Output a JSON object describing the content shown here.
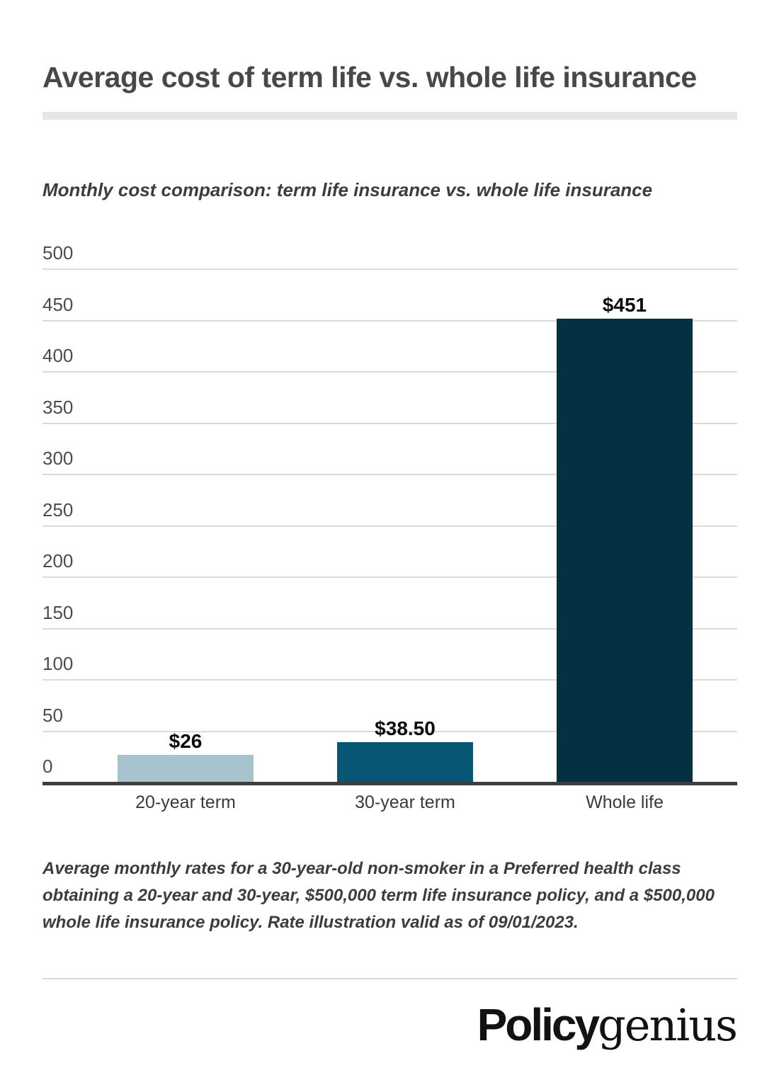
{
  "page": {
    "title": "Average cost of term life vs. whole life insurance",
    "subtitle": "Monthly cost comparison: term life insurance vs. whole life insurance",
    "footnote": "Average monthly rates for a 30-year-old non-smoker in a Preferred health class obtaining a 20-year and 30-year, $500,000 term life insurance policy, and a $500,000 whole life insurance policy. Rate illustration valid as of 09/01/2023.",
    "logo": {
      "bold_part": "Policy",
      "serif_part": "genius"
    }
  },
  "colors": {
    "background": "#ffffff",
    "title_text": "#484848",
    "subtitle_text": "#3d3d3d",
    "tick_text": "#4c4c4c",
    "category_text": "#3a3a3a",
    "value_text": "#0c0c0c",
    "gridline": "#dadada",
    "axis_line": "#3f3f3f",
    "divider": "#e6e6e6",
    "footer_divider": "#d9d9d9",
    "logo_text": "#121212"
  },
  "chart_data": {
    "type": "bar",
    "title": "Monthly cost comparison: term life insurance vs. whole life insurance",
    "categories": [
      "20-year term",
      "30-year term",
      "Whole life"
    ],
    "values": [
      26,
      38.5,
      451
    ],
    "value_labels": [
      "$26",
      "$38.50",
      "$451"
    ],
    "bar_colors": [
      "#a7c3ce",
      "#075674",
      "#033142"
    ],
    "xlabel": "",
    "ylabel": "",
    "ylim": [
      0,
      500
    ],
    "ytick_step": 50,
    "ytick_labels": [
      "0",
      "50",
      "100",
      "150",
      "200",
      "250",
      "300",
      "350",
      "400",
      "450",
      "500"
    ],
    "grid": true,
    "legend": "none",
    "value_label_position": "above-bar"
  }
}
